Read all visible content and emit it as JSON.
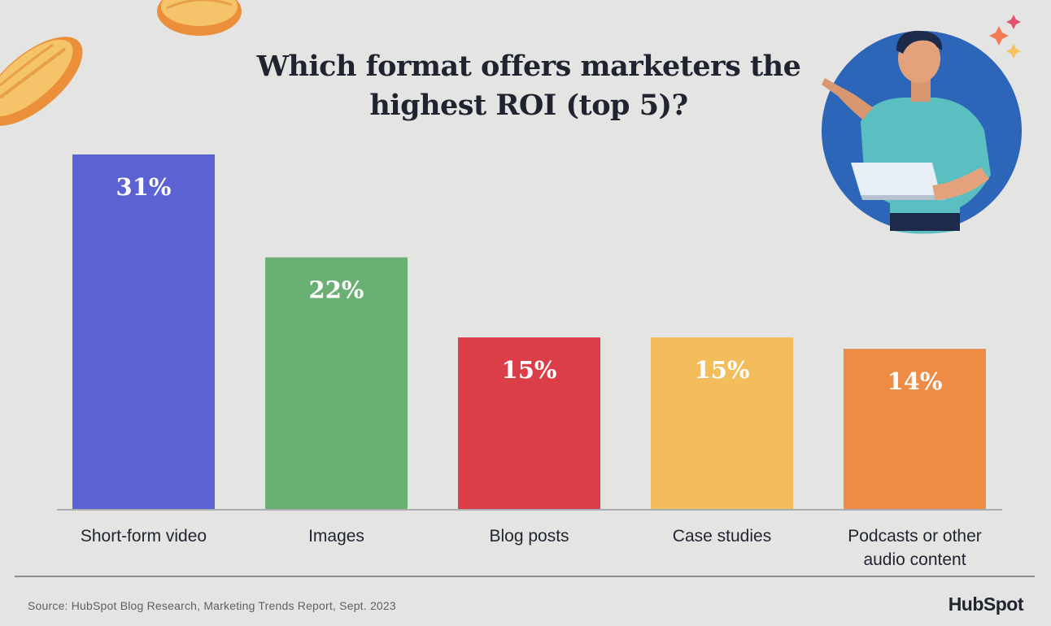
{
  "chart_data": {
    "type": "bar",
    "title_lines": [
      "Which format offers marketers the",
      "highest ROI (top 5)?"
    ],
    "categories": [
      "Short-form video",
      "Images",
      "Blog posts",
      "Case studies",
      "Podcasts or other audio content"
    ],
    "category_label_lines": [
      [
        "Short-form video"
      ],
      [
        "Images"
      ],
      [
        "Blog posts"
      ],
      [
        "Case studies"
      ],
      [
        "Podcasts or other",
        "audio content"
      ]
    ],
    "values": [
      31,
      22,
      15,
      15,
      14
    ],
    "data_labels": [
      "31%",
      "22%",
      "15%",
      "15%",
      "14%"
    ],
    "colors": [
      "#5d62d2",
      "#6aaf74",
      "#dc3e48",
      "#f4bd5c",
      "#ee8c45"
    ],
    "ylim": [
      0,
      31
    ],
    "grid": false,
    "legend": "none"
  },
  "footer": {
    "source": "Source: HubSpot Blog Research, Marketing Trends Report, Sept. 2023",
    "logo_text": "HubSpot"
  },
  "decor": {
    "illustration": "person-with-laptop-icon",
    "coins": "coin-icon",
    "sparkles": "sparkle-icon",
    "circle_color": "#2d66b8",
    "shirt_color": "#5bbfc1",
    "coin_color": "#f4a64d"
  }
}
